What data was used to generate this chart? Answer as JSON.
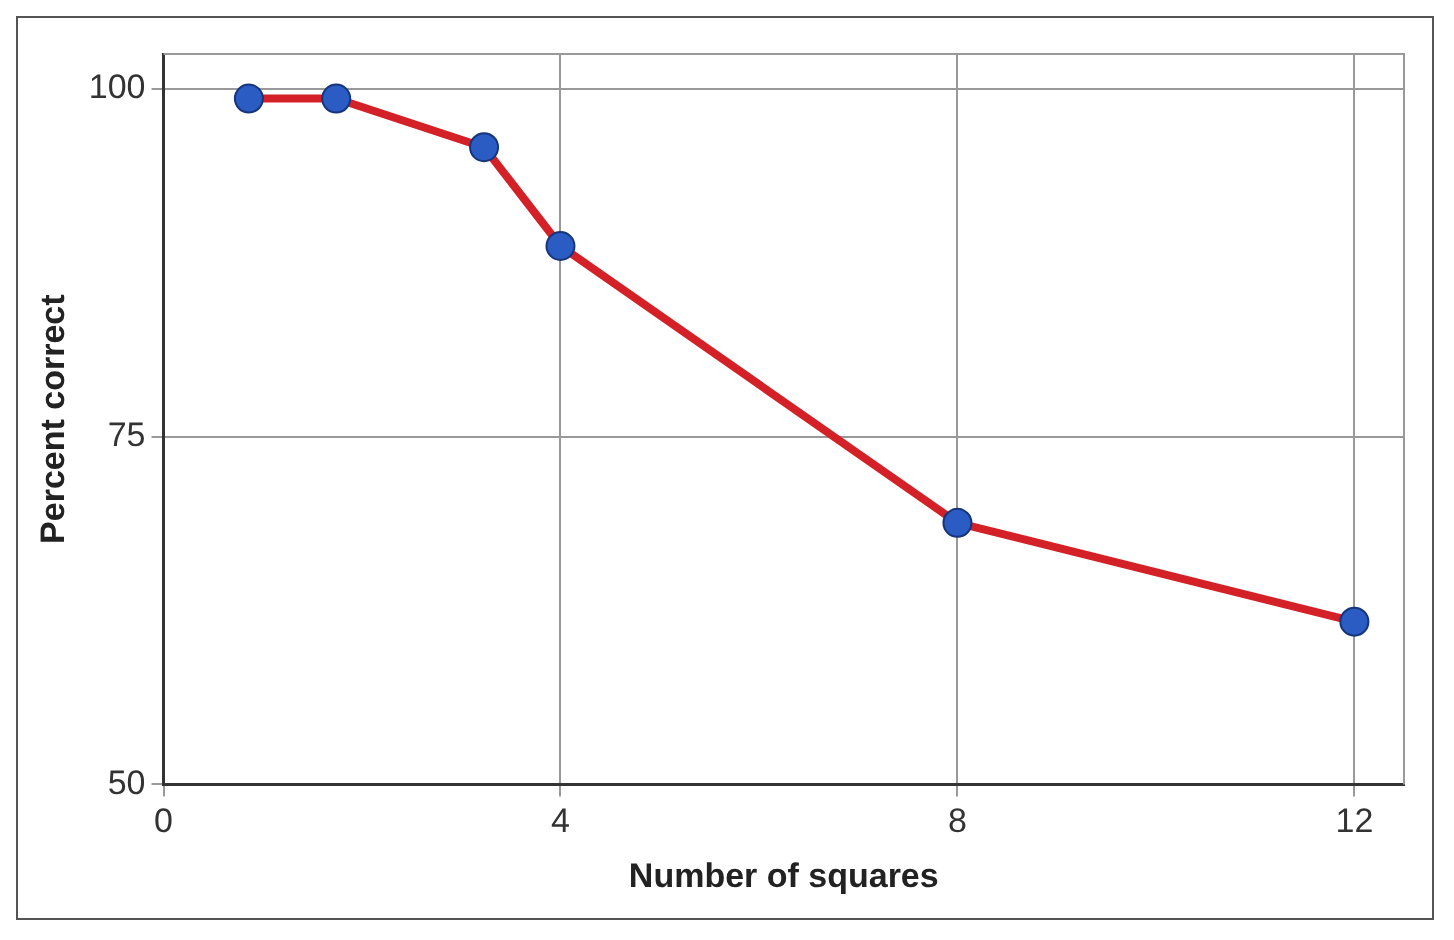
{
  "chart_data": {
    "type": "line",
    "xlabel": "Number of squares",
    "ylabel": "Percent correct",
    "x": [
      0.86,
      1.74,
      3.23,
      4,
      8,
      12
    ],
    "series": [
      {
        "color": "#d42027",
        "values": [
          99.3,
          99.3,
          95.8,
          88.7,
          68.8,
          61.7
        ]
      }
    ],
    "xlim": [
      0,
      12.5
    ],
    "ylim": [
      50,
      102.5
    ],
    "xticks": [
      0,
      4,
      8,
      12
    ],
    "yticks": [
      50,
      75,
      100
    ],
    "grid": true,
    "legend": false,
    "marker": "circle",
    "line_style": "solid"
  }
}
